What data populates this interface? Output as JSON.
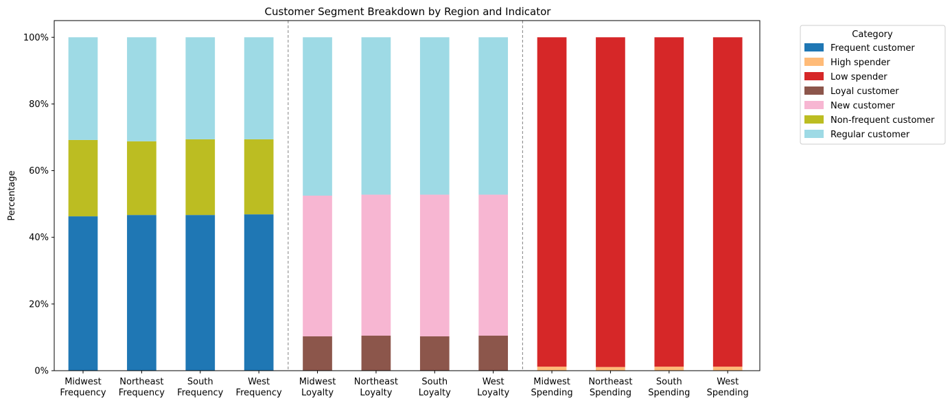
{
  "chart_data": {
    "type": "bar",
    "stacked": true,
    "title": "Customer Segment Breakdown by Region and Indicator",
    "xlabel": "",
    "ylabel": "Percentage",
    "ylim": [
      0,
      105
    ],
    "yticks": [
      0,
      20,
      40,
      60,
      80,
      100
    ],
    "ytick_format": "{v}%",
    "grid": false,
    "legend": {
      "title": "Category",
      "placement": "outside-top-right"
    },
    "categories": [
      [
        "Midwest",
        "Frequency"
      ],
      [
        "Northeast",
        "Frequency"
      ],
      [
        "South",
        "Frequency"
      ],
      [
        "West",
        "Frequency"
      ],
      [
        "Midwest",
        "Loyalty"
      ],
      [
        "Northeast",
        "Loyalty"
      ],
      [
        "South",
        "Loyalty"
      ],
      [
        "West",
        "Loyalty"
      ],
      [
        "Midwest",
        "Spending"
      ],
      [
        "Northeast",
        "Spending"
      ],
      [
        "South",
        "Spending"
      ],
      [
        "West",
        "Spending"
      ]
    ],
    "group_separators_after": [
      3,
      7
    ],
    "series": [
      {
        "name": "Frequent customer",
        "color": "#1f77b4",
        "values": [
          46.3,
          46.7,
          46.7,
          46.9,
          0,
          0,
          0,
          0,
          0,
          0,
          0,
          0
        ]
      },
      {
        "name": "High spender",
        "color": "#ffbb78",
        "values": [
          0,
          0,
          0,
          0,
          0,
          0,
          0,
          0,
          1.2,
          1.1,
          1.2,
          1.2
        ]
      },
      {
        "name": "Low spender",
        "color": "#d62728",
        "values": [
          0,
          0,
          0,
          0,
          0,
          0,
          0,
          0,
          98.8,
          98.9,
          98.8,
          98.8
        ]
      },
      {
        "name": "Loyal customer",
        "color": "#8c564b",
        "values": [
          0,
          0,
          0,
          0,
          10.3,
          10.5,
          10.3,
          10.5,
          0,
          0,
          0,
          0
        ]
      },
      {
        "name": "New customer",
        "color": "#f7b6d2",
        "values": [
          0,
          0,
          0,
          0,
          42.2,
          42.3,
          42.5,
          42.3,
          0,
          0,
          0,
          0
        ]
      },
      {
        "name": "Non-frequent customer",
        "color": "#bcbd22",
        "values": [
          22.9,
          22.1,
          22.7,
          22.5,
          0,
          0,
          0,
          0,
          0,
          0,
          0,
          0
        ]
      },
      {
        "name": "Regular customer",
        "color": "#9edae5",
        "values": [
          30.8,
          31.2,
          30.6,
          30.6,
          47.5,
          47.2,
          47.2,
          47.2,
          0,
          0,
          0,
          0
        ]
      }
    ]
  }
}
